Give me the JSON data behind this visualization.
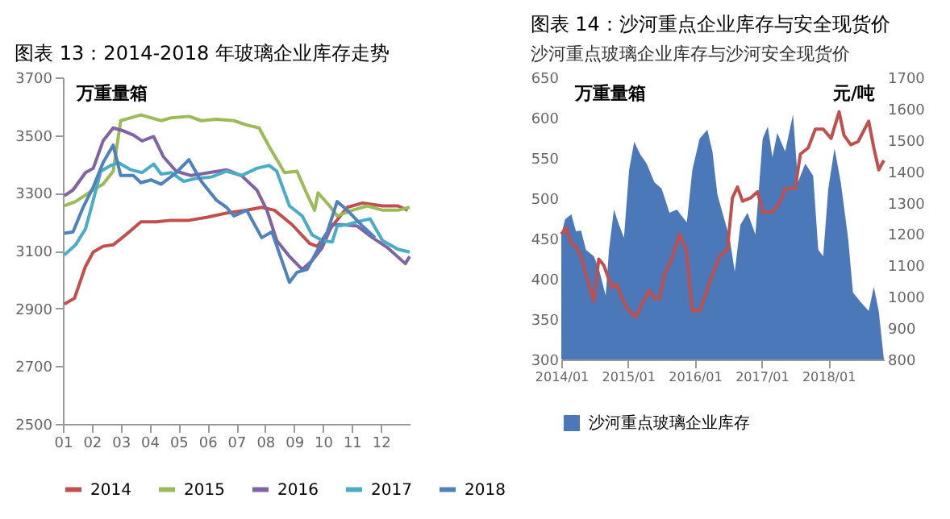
{
  "chart_data": [
    {
      "type": "line",
      "title": "图表 13：2014-2018 年玻璃企业库存走势",
      "ylabel": "万重量箱",
      "legend": "bottom",
      "xlim": [
        1,
        13
      ],
      "xticks": [
        {
          "value": 1,
          "label": "01"
        },
        {
          "value": 2,
          "label": "02"
        },
        {
          "value": 3,
          "label": "03"
        },
        {
          "value": 4,
          "label": "04"
        },
        {
          "value": 5,
          "label": "05"
        },
        {
          "value": 6,
          "label": "06"
        },
        {
          "value": 7,
          "label": "07"
        },
        {
          "value": 8,
          "label": "08"
        },
        {
          "value": 9,
          "label": "09"
        },
        {
          "value": 10,
          "label": "10"
        },
        {
          "value": 11,
          "label": "11"
        },
        {
          "value": 12,
          "label": "12"
        }
      ],
      "ylim": [
        2500,
        3700
      ],
      "yticks": [
        2500,
        2700,
        2900,
        3100,
        3300,
        3500,
        3700
      ],
      "series": [
        {
          "name": "2014",
          "color": "#c0504d",
          "x": [
            1.05,
            1.4,
            1.78,
            2.05,
            2.39,
            2.74,
            3.18,
            3.7,
            4.22,
            4.75,
            5.36,
            5.97,
            6.66,
            7.36,
            7.88,
            8.32,
            8.93,
            9.54,
            9.8,
            10.32,
            10.84,
            11.37,
            12.06,
            12.59,
            12.93
          ],
          "values": [
            2915,
            2935,
            3045,
            3095,
            3115,
            3120,
            3155,
            3200,
            3200,
            3205,
            3205,
            3215,
            3230,
            3240,
            3250,
            3240,
            3190,
            3125,
            3115,
            3185,
            3250,
            3265,
            3255,
            3255,
            3240
          ]
        },
        {
          "name": "2015",
          "color": "#9bbb59",
          "x": [
            1.05,
            1.44,
            1.96,
            2.39,
            2.74,
            3.0,
            3.35,
            3.7,
            4.05,
            4.4,
            4.75,
            5.36,
            5.79,
            6.31,
            6.92,
            7.36,
            7.79,
            8.14,
            8.67,
            9.1,
            9.45,
            9.71,
            9.83,
            10.23,
            10.49,
            11.02,
            11.54,
            12.06,
            12.59,
            13.0
          ],
          "values": [
            3255,
            3270,
            3305,
            3330,
            3375,
            3550,
            3560,
            3570,
            3560,
            3550,
            3560,
            3565,
            3550,
            3555,
            3550,
            3535,
            3525,
            3460,
            3370,
            3375,
            3295,
            3240,
            3300,
            3255,
            3220,
            3240,
            3255,
            3240,
            3240,
            3250
          ]
        },
        {
          "name": "2016",
          "color": "#8064a2",
          "x": [
            1.05,
            1.35,
            1.78,
            2.05,
            2.39,
            2.74,
            3.09,
            3.44,
            3.74,
            4.14,
            4.48,
            4.92,
            5.44,
            6.05,
            6.66,
            7.18,
            7.71,
            8.06,
            8.4,
            8.84,
            9.28,
            9.62,
            9.97,
            10.32,
            10.67,
            11.19,
            11.71,
            12.24,
            12.85,
            13.0
          ],
          "values": [
            3290,
            3310,
            3370,
            3385,
            3480,
            3525,
            3515,
            3500,
            3480,
            3495,
            3425,
            3375,
            3360,
            3370,
            3380,
            3360,
            3310,
            3240,
            3135,
            3080,
            3035,
            3065,
            3110,
            3190,
            3190,
            3185,
            3145,
            3110,
            3055,
            3080
          ]
        },
        {
          "name": "2017",
          "color": "#4bacc6",
          "x": [
            1.05,
            1.44,
            1.78,
            1.96,
            2.31,
            2.66,
            2.92,
            3.35,
            3.74,
            4.14,
            4.4,
            4.75,
            5.18,
            5.62,
            6.14,
            6.66,
            7.18,
            7.71,
            8.14,
            8.4,
            8.84,
            9.28,
            9.62,
            9.97,
            10.32,
            10.49,
            10.84,
            11.19,
            11.63,
            12.06,
            12.59,
            13.0
          ],
          "values": [
            3085,
            3120,
            3175,
            3240,
            3375,
            3395,
            3405,
            3380,
            3370,
            3400,
            3365,
            3370,
            3340,
            3350,
            3355,
            3375,
            3360,
            3385,
            3395,
            3375,
            3255,
            3220,
            3155,
            3135,
            3130,
            3185,
            3190,
            3200,
            3210,
            3135,
            3105,
            3095
          ]
        },
        {
          "name": "2018",
          "color": "#4f81bd",
          "x": [
            1.05,
            1.35,
            1.7,
            2.05,
            2.39,
            2.74,
            3.0,
            3.44,
            3.7,
            4.05,
            4.4,
            4.92,
            5.36,
            5.79,
            6.31,
            6.66,
            6.92,
            7.36,
            7.88,
            8.23,
            8.84,
            9.1,
            9.45,
            9.8,
            10.15,
            10.49,
            10.84,
            11.37,
            11.8
          ],
          "values": [
            3160,
            3165,
            3250,
            3320,
            3405,
            3465,
            3360,
            3360,
            3335,
            3345,
            3330,
            3370,
            3415,
            3340,
            3275,
            3250,
            3220,
            3240,
            3145,
            3165,
            2990,
            3025,
            3035,
            3100,
            3165,
            3270,
            3240,
            3185,
            3145
          ]
        }
      ]
    },
    {
      "type": "area",
      "title": "图表 14：沙河重点企业库存与安全现货价",
      "subtitle": "沙河重点玻璃企业库存与沙河安全现货价",
      "ylabel": "万重量箱",
      "y2label": "元/吨",
      "legend": "bottom",
      "xlim": [
        "2014-01-01",
        "2018-11-01"
      ],
      "xticks": [
        {
          "value": "2014-01",
          "label": "2014/01"
        },
        {
          "value": "2015-01",
          "label": "2015/01"
        },
        {
          "value": "2016-01",
          "label": "2016/01"
        },
        {
          "value": "2017-01",
          "label": "2017/01"
        },
        {
          "value": "2018-01",
          "label": "2018/01"
        }
      ],
      "ylim": [
        300,
        650
      ],
      "yticks": [
        300,
        350,
        400,
        450,
        500,
        550,
        600,
        650
      ],
      "y2lim": [
        800,
        1700
      ],
      "y2ticks": [
        800,
        900,
        1000,
        1100,
        1200,
        1300,
        1400,
        1500,
        1600,
        1700
      ],
      "series": [
        {
          "name": "沙河重点玻璃企业库存",
          "color": "#4a78b8",
          "x": [
            "2014-01-01",
            "2014-01-22",
            "2014-02-25",
            "2014-03-22",
            "2014-04-19",
            "2014-05-16",
            "2014-06-28",
            "2014-07-25",
            "2014-09-01",
            "2014-09-19",
            "2014-10-16",
            "2014-11-13",
            "2014-12-10",
            "2015-01-07",
            "2015-02-04",
            "2015-03-10",
            "2015-04-13",
            "2015-05-25",
            "2015-07-04",
            "2015-08-16",
            "2015-09-25",
            "2015-11-19",
            "2015-12-19",
            "2016-01-28",
            "2016-03-10",
            "2016-04-07",
            "2016-05-04",
            "2016-06-01",
            "2016-07-10",
            "2016-08-07",
            "2016-09-07",
            "2016-10-16",
            "2016-11-28",
            "2017-01-07",
            "2017-02-04",
            "2017-03-01",
            "2017-03-28",
            "2017-05-10",
            "2017-06-22",
            "2017-07-19",
            "2017-08-28",
            "2017-10-10",
            "2017-11-07",
            "2017-12-04",
            "2018-01-01",
            "2018-02-04",
            "2018-03-10",
            "2018-04-19",
            "2018-05-16",
            "2018-06-28",
            "2018-08-10",
            "2018-09-07",
            "2018-10-04",
            "2018-11-01"
          ],
          "values": [
            455,
            474,
            480,
            459,
            460,
            436,
            428,
            413,
            379,
            436,
            486,
            467,
            451,
            535,
            570,
            554,
            543,
            520,
            512,
            482,
            486,
            470,
            535,
            574,
            585,
            558,
            505,
            482,
            451,
            409,
            467,
            482,
            455,
            574,
            589,
            551,
            581,
            558,
            604,
            520,
            543,
            528,
            436,
            428,
            512,
            562,
            520,
            451,
            383,
            371,
            360,
            390,
            360,
            300
          ]
        },
        {
          "type": "line",
          "axis": "y2",
          "color": "#c0504d",
          "x": [
            "2014-01-01",
            "2014-01-28",
            "2014-02-25",
            "2014-03-22",
            "2014-04-19",
            "2014-05-16",
            "2014-06-28",
            "2014-07-25",
            "2014-08-22",
            "2014-10-04",
            "2014-11-01",
            "2014-11-28",
            "2015-01-07",
            "2015-02-13",
            "2015-03-16",
            "2015-04-28",
            "2015-05-25",
            "2015-06-22",
            "2015-07-19",
            "2015-08-28",
            "2015-10-10",
            "2015-11-16",
            "2015-12-19",
            "2016-01-28",
            "2016-02-25",
            "2016-04-07",
            "2016-05-16",
            "2016-06-28",
            "2016-07-25",
            "2016-08-22",
            "2016-09-19",
            "2016-11-01",
            "2016-12-10",
            "2017-01-07",
            "2017-03-01",
            "2017-04-13",
            "2017-05-10",
            "2017-07-04",
            "2017-08-01",
            "2017-09-13",
            "2017-10-22",
            "2017-12-04",
            "2018-01-16",
            "2018-03-01",
            "2018-03-28",
            "2018-05-04",
            "2018-06-13",
            "2018-08-10",
            "2018-09-07",
            "2018-10-04",
            "2018-11-01"
          ],
          "values": [
            1200,
            1220,
            1170,
            1160,
            1130,
            1070,
            985,
            1120,
            1100,
            1030,
            1040,
            995,
            955,
            935,
            975,
            1020,
            995,
            995,
            1070,
            1120,
            1200,
            1150,
            955,
            955,
            1000,
            1070,
            1130,
            1150,
            1315,
            1350,
            1305,
            1315,
            1335,
            1270,
            1270,
            1305,
            1345,
            1345,
            1455,
            1475,
            1535,
            1535,
            1505,
            1590,
            1515,
            1485,
            1495,
            1560,
            1475,
            1405,
            1435
          ]
        }
      ]
    }
  ]
}
